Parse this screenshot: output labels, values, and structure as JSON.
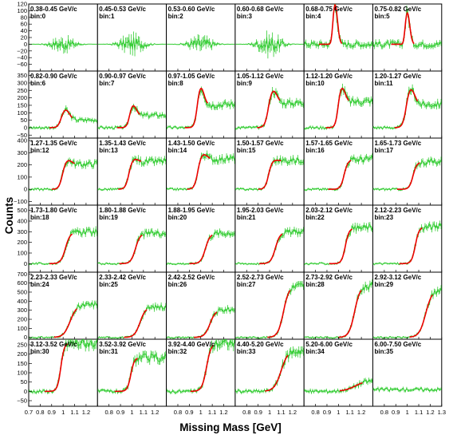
{
  "chart_data": {
    "type": "line",
    "xlabel": "Missing Mass [GeV]",
    "ylabel": "Counts",
    "xlim": [
      0.7,
      1.3
    ],
    "x_tick_labels": [
      "0.7",
      "0.8",
      "0.9",
      "1",
      "1.1",
      "1.2",
      "1.3"
    ],
    "series_colors": {
      "data": "#33cc33",
      "fit": "#ee0000"
    },
    "row_ylims": [
      [
        -80,
        120
      ],
      [
        -70,
        380
      ],
      [
        -130,
        420
      ],
      [
        -80,
        550
      ],
      [
        -20,
        720
      ],
      [
        -80,
        280
      ]
    ],
    "row_ytick_labels": [
      [
        "120",
        "100",
        "80",
        "60",
        "40",
        "20",
        "0",
        "−20",
        "−40",
        "−60"
      ],
      [
        "350",
        "300",
        "250",
        "200",
        "150",
        "100",
        "50",
        "0",
        "−50"
      ],
      [
        "400",
        "300",
        "200",
        "100",
        "0",
        "−100"
      ],
      [
        "500",
        "400",
        "300",
        "200",
        "100",
        "0"
      ],
      [
        "700",
        "600",
        "500",
        "400",
        "300",
        "200",
        "100",
        "0"
      ],
      [
        "250",
        "200",
        "150",
        "100",
        "50",
        "0",
        "−50"
      ]
    ],
    "panels": [
      {
        "range": "0.38-0.45 GeV/c",
        "bin": "bin:0"
      },
      {
        "range": "0.45-0.53 GeV/c",
        "bin": "bin:1"
      },
      {
        "range": "0.53-0.60 GeV/c",
        "bin": "bin:2"
      },
      {
        "range": "0.60-0.68 GeV/c",
        "bin": "bin:3"
      },
      {
        "range": "0.68-0.75 GeV/c",
        "bin": "bin:4"
      },
      {
        "range": "0.75-0.82 GeV/c",
        "bin": "bin:5"
      },
      {
        "range": "0.82-0.90 GeV/c",
        "bin": "bin:6"
      },
      {
        "range": "0.90-0.97 GeV/c",
        "bin": "bin:7"
      },
      {
        "range": "0.97-1.05 GeV/c",
        "bin": "bin:8"
      },
      {
        "range": "1.05-1.12 GeV/c",
        "bin": "bin:9"
      },
      {
        "range": "1.12-1.20 GeV/c",
        "bin": "bin:10"
      },
      {
        "range": "1.20-1.27 GeV/c",
        "bin": "bin:11"
      },
      {
        "range": "1.27-1.35 GeV/c",
        "bin": "bin:12"
      },
      {
        "range": "1.35-1.43 GeV/c",
        "bin": "bin:13"
      },
      {
        "range": "1.43-1.50 GeV/c",
        "bin": "bin:14"
      },
      {
        "range": "1.50-1.57 GeV/c",
        "bin": "bin:15"
      },
      {
        "range": "1.57-1.65 GeV/c",
        "bin": "bin:16"
      },
      {
        "range": "1.65-1.73 GeV/c",
        "bin": "bin:17"
      },
      {
        "range": "1.73-1.80 GeV/c",
        "bin": "bin:18"
      },
      {
        "range": "1.80-1.88 GeV/c",
        "bin": "bin:19"
      },
      {
        "range": "1.88-1.95 GeV/c",
        "bin": "bin:20"
      },
      {
        "range": "1.95-2.03 GeV/c",
        "bin": "bin:21"
      },
      {
        "range": "2.03-2.12 GeV/c",
        "bin": "bin:22"
      },
      {
        "range": "2.12-2.23 GeV/c",
        "bin": "bin:23"
      },
      {
        "range": "2.23-2.33 GeV/c",
        "bin": "bin:24"
      },
      {
        "range": "2.33-2.42 GeV/c",
        "bin": "bin:25"
      },
      {
        "range": "2.42-2.52 GeV/c",
        "bin": "bin:26"
      },
      {
        "range": "2.52-2.73 GeV/c",
        "bin": "bin:27"
      },
      {
        "range": "2.73-2.92 GeV/c",
        "bin": "bin:28"
      },
      {
        "range": "2.92-3.12 GeV/c",
        "bin": "bin:29"
      },
      {
        "range": "3.12-3.52 GeV/c",
        "bin": "bin:30"
      },
      {
        "range": "3.52-3.92 GeV/c",
        "bin": "bin:31"
      },
      {
        "range": "3.92-4.40 GeV/c",
        "bin": "bin:32"
      },
      {
        "range": "4.40-5.20 GeV/c",
        "bin": "bin:33"
      },
      {
        "range": "5.20-6.00 GeV/c",
        "bin": "bin:34"
      },
      {
        "range": "6.00-7.50 GeV/c",
        "bin": "bin:35"
      }
    ],
    "shapes": [
      {
        "kind": "noise",
        "amp": 20,
        "plat": 0
      },
      {
        "kind": "noise",
        "amp": 25,
        "plat": 0
      },
      {
        "kind": "noise",
        "amp": 22,
        "plat": 0
      },
      {
        "kind": "noise",
        "amp": 28,
        "plat": 0
      },
      {
        "kind": "peak",
        "x0": 0.97,
        "h": 120,
        "w": 0.03,
        "plat": 0
      },
      {
        "kind": "peak",
        "x0": 1.0,
        "h": 95,
        "w": 0.03,
        "plat": 0
      },
      {
        "kind": "peak",
        "x0": 1.02,
        "h": 120,
        "w": 0.05,
        "plat": 50
      },
      {
        "kind": "peak",
        "x0": 1.01,
        "h": 150,
        "w": 0.04,
        "plat": 80
      },
      {
        "kind": "peak",
        "x0": 1.0,
        "h": 270,
        "w": 0.04,
        "plat": 150
      },
      {
        "kind": "peak",
        "x0": 1.03,
        "h": 250,
        "w": 0.05,
        "plat": 160
      },
      {
        "kind": "peak",
        "x0": 1.03,
        "h": 270,
        "w": 0.04,
        "plat": 170
      },
      {
        "kind": "peak",
        "x0": 1.03,
        "h": 260,
        "w": 0.05,
        "plat": 150
      },
      {
        "kind": "peak",
        "x0": 1.04,
        "h": 240,
        "w": 0.05,
        "plat": 200
      },
      {
        "kind": "peak",
        "x0": 1.02,
        "h": 250,
        "w": 0.05,
        "plat": 220
      },
      {
        "kind": "peak",
        "x0": 1.02,
        "h": 290,
        "w": 0.05,
        "plat": 240
      },
      {
        "kind": "peak",
        "x0": 1.04,
        "h": 240,
        "w": 0.05,
        "plat": 230
      },
      {
        "kind": "rise",
        "x0": 1.05,
        "plat": 240,
        "w": 0.04
      },
      {
        "kind": "rise",
        "x0": 1.05,
        "plat": 220,
        "w": 0.04
      },
      {
        "kind": "rise",
        "x0": 1.02,
        "plat": 290,
        "w": 0.05
      },
      {
        "kind": "rise",
        "x0": 1.03,
        "plat": 280,
        "w": 0.05
      },
      {
        "kind": "rise",
        "x0": 1.04,
        "plat": 280,
        "w": 0.05
      },
      {
        "kind": "rise",
        "x0": 1.05,
        "plat": 290,
        "w": 0.05
      },
      {
        "kind": "rise",
        "x0": 1.06,
        "plat": 330,
        "w": 0.04
      },
      {
        "kind": "rise",
        "x0": 1.07,
        "plat": 340,
        "w": 0.04
      },
      {
        "kind": "rise",
        "x0": 1.06,
        "plat": 350,
        "w": 0.07
      },
      {
        "kind": "rise",
        "x0": 1.07,
        "plat": 330,
        "w": 0.06
      },
      {
        "kind": "rise",
        "x0": 1.08,
        "plat": 300,
        "w": 0.06
      },
      {
        "kind": "rise",
        "x0": 1.12,
        "plat": 560,
        "w": 0.06
      },
      {
        "kind": "rise",
        "x0": 1.14,
        "plat": 560,
        "w": 0.06
      },
      {
        "kind": "rise",
        "x0": 1.16,
        "plat": 520,
        "w": 0.07
      },
      {
        "kind": "steep",
        "x0": 0.98,
        "h": 260,
        "w": 0.03
      },
      {
        "kind": "steep",
        "x0": 0.99,
        "h": 180,
        "w": 0.03
      },
      {
        "kind": "steep",
        "x0": 1.05,
        "h": 260,
        "w": 0.04
      },
      {
        "kind": "steep",
        "x0": 1.1,
        "h": 220,
        "w": 0.06
      },
      {
        "kind": "slow",
        "x0": 1.15,
        "h": 60,
        "w": 0.1
      },
      {
        "kind": "flat",
        "h": 10
      }
    ]
  }
}
